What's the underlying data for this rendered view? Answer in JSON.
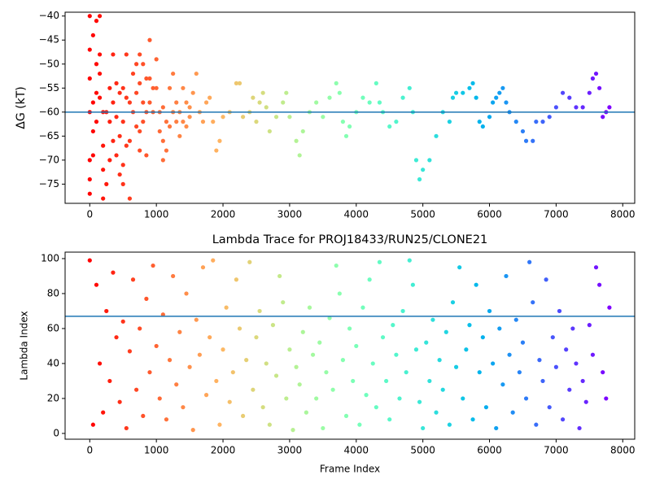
{
  "chart_data": [
    {
      "type": "scatter",
      "ylabel": "ΔG (kT)",
      "colormap": "rainbow_r",
      "color_range": [
        0,
        7800
      ],
      "hline": -60,
      "hline_color": "#1f77b4",
      "xlim": [
        -370,
        8180
      ],
      "ylim": [
        -79,
        -39.2
      ],
      "xticks": [
        0,
        1000,
        2000,
        3000,
        4000,
        5000,
        6000,
        7000,
        8000
      ],
      "yticks": [
        {
          "value": -75,
          "label": "−75"
        },
        {
          "value": -70,
          "label": "−70"
        },
        {
          "value": -65,
          "label": "−65"
        },
        {
          "value": -60,
          "label": "−60"
        },
        {
          "value": -55,
          "label": "−55"
        },
        {
          "value": -50,
          "label": "−50"
        },
        {
          "value": -45,
          "label": "−45"
        },
        {
          "value": -40,
          "label": "−40"
        }
      ],
      "x": [
        0,
        0,
        0,
        0,
        0,
        0,
        0,
        50,
        50,
        50,
        50,
        100,
        100,
        100,
        100,
        150,
        150,
        150,
        150,
        200,
        200,
        200,
        200,
        250,
        250,
        300,
        300,
        300,
        350,
        350,
        350,
        400,
        400,
        400,
        450,
        450,
        450,
        500,
        500,
        500,
        500,
        550,
        550,
        550,
        600,
        600,
        600,
        650,
        650,
        700,
        700,
        700,
        750,
        750,
        750,
        750,
        800,
        800,
        800,
        850,
        850,
        850,
        900,
        900,
        900,
        950,
        950,
        1000,
        1000,
        1050,
        1050,
        1100,
        1100,
        1100,
        1150,
        1150,
        1200,
        1200,
        1250,
        1250,
        1300,
        1300,
        1350,
        1350,
        1400,
        1400,
        1450,
        1450,
        1500,
        1500,
        1550,
        1600,
        1650,
        1700,
        1750,
        1800,
        1850,
        1900,
        1950,
        2000,
        2100,
        2200,
        2250,
        2300,
        2400,
        2450,
        2500,
        2550,
        2600,
        2650,
        2700,
        2800,
        2900,
        2950,
        3000,
        3100,
        3150,
        3200,
        3300,
        3400,
        3500,
        3600,
        3700,
        3750,
        3800,
        3850,
        3900,
        4000,
        4100,
        4200,
        4300,
        4350,
        4400,
        4500,
        4600,
        4700,
        4800,
        4850,
        4900,
        4950,
        5000,
        5100,
        5200,
        5300,
        5400,
        5450,
        5500,
        5600,
        5700,
        5750,
        5800,
        5850,
        5900,
        6000,
        6050,
        6100,
        6150,
        6200,
        6250,
        6300,
        6400,
        6500,
        6550,
        6650,
        6700,
        6800,
        6900,
        7000,
        7100,
        7200,
        7300,
        7400,
        7500,
        7550,
        7600,
        7650,
        7700,
        7750,
        7800
      ],
      "values": [
        -40,
        -47,
        -53,
        -60,
        -70,
        -74,
        -77,
        -44,
        -58,
        -64,
        -69,
        -41,
        -50,
        -56,
        -62,
        -40,
        -48,
        -52,
        -57,
        -60,
        -67,
        -72,
        -78,
        -60,
        -75,
        -55,
        -62,
        -70,
        -48,
        -58,
        -66,
        -54,
        -61,
        -69,
        -56,
        -65,
        -73,
        -55,
        -62,
        -71,
        -75,
        -48,
        -57,
        -67,
        -58,
        -66,
        -78,
        -52,
        -60,
        -50,
        -56,
        -63,
        -48,
        -54,
        -64,
        -68,
        -50,
        -58,
        -62,
        -53,
        -60,
        -69,
        -45,
        -53,
        -58,
        -55,
        -60,
        -49,
        -55,
        -60,
        -64,
        -59,
        -66,
        -70,
        -62,
        -68,
        -55,
        -63,
        -52,
        -60,
        -58,
        -62,
        -60,
        -65,
        -55,
        -62,
        -58,
        -63,
        -59,
        -61,
        -56,
        -52,
        -60,
        -62,
        -58,
        -57,
        -62,
        -68,
        -66,
        -61,
        -60,
        -54,
        -54,
        -61,
        -60,
        -57,
        -62,
        -58,
        -56,
        -59,
        -64,
        -61,
        -58,
        -56,
        -61,
        -66,
        -69,
        -64,
        -60,
        -58,
        -61,
        -57,
        -54,
        -56,
        -62,
        -65,
        -63,
        -60,
        -57,
        -58,
        -54,
        -58,
        -60,
        -63,
        -62,
        -57,
        -55,
        -60,
        -70,
        -74,
        -72,
        -70,
        -65,
        -60,
        -62,
        -57,
        -56,
        -56,
        -55,
        -54,
        -57,
        -62,
        -63,
        -61,
        -58,
        -57,
        -56,
        -55,
        -58,
        -60,
        -62,
        -64,
        -66,
        -66,
        -62,
        -62,
        -61,
        -59,
        -56,
        -57,
        -59,
        -59,
        -56,
        -53,
        -52,
        -55,
        -61,
        -60,
        -59
      ]
    },
    {
      "type": "scatter",
      "title": "Lambda Trace for PROJ18433/RUN25/CLONE21",
      "xlabel": "Frame Index",
      "ylabel": "Lambda Index",
      "colormap": "rainbow_r",
      "color_range": [
        0,
        7800
      ],
      "hline": 67,
      "hline_color": "#1f77b4",
      "xlim": [
        -370,
        8180
      ],
      "ylim": [
        -3.3,
        103.7
      ],
      "xticks": [
        0,
        1000,
        2000,
        3000,
        4000,
        5000,
        6000,
        7000,
        8000
      ],
      "yticks": [
        0,
        20,
        40,
        60,
        80,
        100
      ],
      "x": [
        0,
        50,
        100,
        150,
        200,
        250,
        300,
        350,
        400,
        450,
        500,
        550,
        600,
        650,
        700,
        750,
        800,
        850,
        900,
        950,
        1000,
        1050,
        1100,
        1150,
        1200,
        1250,
        1300,
        1350,
        1400,
        1450,
        1500,
        1550,
        1600,
        1650,
        1700,
        1750,
        1800,
        1850,
        1900,
        1950,
        2000,
        2050,
        2100,
        2150,
        2200,
        2250,
        2300,
        2350,
        2400,
        2450,
        2500,
        2550,
        2600,
        2650,
        2700,
        2750,
        2800,
        2850,
        2900,
        2950,
        3000,
        3050,
        3100,
        3150,
        3200,
        3250,
        3300,
        3350,
        3400,
        3450,
        3500,
        3550,
        3600,
        3650,
        3700,
        3750,
        3800,
        3850,
        3900,
        3950,
        4000,
        4050,
        4100,
        4150,
        4200,
        4250,
        4300,
        4350,
        4400,
        4450,
        4500,
        4550,
        4600,
        4650,
        4700,
        4750,
        4800,
        4850,
        4900,
        4950,
        5000,
        5050,
        5100,
        5150,
        5200,
        5250,
        5300,
        5350,
        5400,
        5450,
        5500,
        5550,
        5600,
        5650,
        5700,
        5750,
        5800,
        5850,
        5900,
        5950,
        6000,
        6050,
        6100,
        6150,
        6200,
        6250,
        6300,
        6350,
        6400,
        6450,
        6500,
        6550,
        6600,
        6650,
        6700,
        6750,
        6800,
        6850,
        6900,
        6950,
        7000,
        7050,
        7100,
        7150,
        7200,
        7250,
        7300,
        7350,
        7400,
        7450,
        7500,
        7550,
        7600,
        7650,
        7700,
        7750,
        7800
      ],
      "values": [
        99,
        5,
        85,
        40,
        12,
        70,
        30,
        92,
        55,
        18,
        64,
        3,
        47,
        88,
        25,
        60,
        10,
        77,
        35,
        96,
        50,
        20,
        68,
        8,
        42,
        90,
        28,
        58,
        15,
        80,
        38,
        2,
        65,
        45,
        95,
        22,
        55,
        99,
        30,
        5,
        48,
        72,
        18,
        35,
        88,
        60,
        10,
        42,
        98,
        25,
        55,
        70,
        15,
        40,
        5,
        62,
        33,
        90,
        75,
        20,
        48,
        2,
        38,
        28,
        58,
        12,
        72,
        45,
        20,
        52,
        3,
        35,
        66,
        25,
        96,
        80,
        42,
        10,
        60,
        30,
        50,
        5,
        72,
        22,
        88,
        40,
        15,
        98,
        55,
        30,
        8,
        62,
        45,
        20,
        70,
        35,
        99,
        85,
        48,
        18,
        3,
        52,
        30,
        65,
        12,
        42,
        25,
        58,
        5,
        75,
        38,
        95,
        20,
        48,
        62,
        8,
        85,
        35,
        55,
        15,
        70,
        40,
        3,
        60,
        28,
        90,
        45,
        12,
        65,
        35,
        52,
        20,
        98,
        75,
        5,
        42,
        30,
        88,
        15,
        55,
        38,
        70,
        8,
        48,
        25,
        60,
        40,
        3,
        30,
        18,
        62,
        45,
        95,
        85,
        35,
        20,
        72
      ]
    }
  ]
}
